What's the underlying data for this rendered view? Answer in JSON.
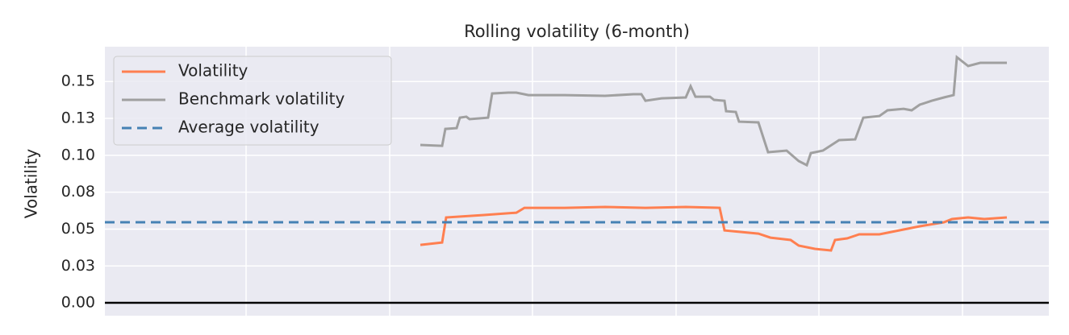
{
  "chart_data": {
    "type": "line",
    "title": "Rolling volatility (6-month)",
    "y_label": "Volatility",
    "xlim": [
      0,
      1170
    ],
    "xgrid": [
      175,
      353,
      530,
      708,
      885,
      1063
    ],
    "ylim": [
      -0.0087,
      0.1736
    ],
    "yticks": [
      {
        "value": 0,
        "label": "0.00"
      },
      {
        "value": 0.025,
        "label": "0.03"
      },
      {
        "value": 0.05,
        "label": "0.05"
      },
      {
        "value": 0.075,
        "label": "0.08"
      },
      {
        "value": 0.1,
        "label": "0.10"
      },
      {
        "value": 0.125,
        "label": "0.13"
      },
      {
        "value": 0.15,
        "label": "0.15"
      }
    ],
    "grid": true,
    "legend": "upper left",
    "baseline": {
      "value": 0,
      "color": "#000000"
    },
    "series": [
      {
        "name": "Volatility",
        "color": "#ff7f50",
        "x": [
          391,
          418,
          423,
          470,
          510,
          520,
          570,
          620,
          670,
          720,
          762,
          768,
          810,
          825,
          850,
          860,
          880,
          900,
          905,
          920,
          935,
          960,
          970,
          1010,
          1040,
          1050,
          1070,
          1090,
          1118
        ],
        "values": [
          0.0393,
          0.0409,
          0.0579,
          0.0595,
          0.0611,
          0.0644,
          0.0644,
          0.065,
          0.0644,
          0.065,
          0.0644,
          0.0491,
          0.0469,
          0.0442,
          0.0426,
          0.0388,
          0.0366,
          0.0355,
          0.0426,
          0.0437,
          0.0464,
          0.0464,
          0.0475,
          0.0519,
          0.0546,
          0.0568,
          0.0579,
          0.0568,
          0.0579
        ]
      },
      {
        "name": "Benchmark volatility",
        "color": "#a0a0a0",
        "x": [
          391,
          418,
          422,
          436,
          440,
          448,
          452,
          475,
          480,
          500,
          510,
          525,
          570,
          620,
          655,
          665,
          670,
          690,
          720,
          726,
          732,
          750,
          755,
          768,
          770,
          782,
          786,
          810,
          822,
          845,
          860,
          870,
          875,
          890,
          910,
          930,
          940,
          960,
          970,
          990,
          1000,
          1010,
          1025,
          1040,
          1052,
          1056,
          1070,
          1085,
          1118
        ],
        "values": [
          0.107,
          0.1064,
          0.1179,
          0.1184,
          0.1255,
          0.1261,
          0.1245,
          0.1255,
          0.1419,
          0.1425,
          0.1425,
          0.1408,
          0.1408,
          0.1403,
          0.1414,
          0.1414,
          0.137,
          0.1386,
          0.1392,
          0.1468,
          0.1397,
          0.1397,
          0.1376,
          0.137,
          0.1299,
          0.1294,
          0.1228,
          0.1223,
          0.1021,
          0.1032,
          0.0961,
          0.0933,
          0.1015,
          0.1032,
          0.1103,
          0.1108,
          0.1255,
          0.1266,
          0.1305,
          0.1315,
          0.1305,
          0.1343,
          0.137,
          0.1392,
          0.1408,
          0.1665,
          0.1605,
          0.1627,
          0.1627
        ]
      },
      {
        "name": "Average volatility",
        "color": "#4682b4",
        "dashed": true,
        "value": 0.0546
      }
    ]
  }
}
